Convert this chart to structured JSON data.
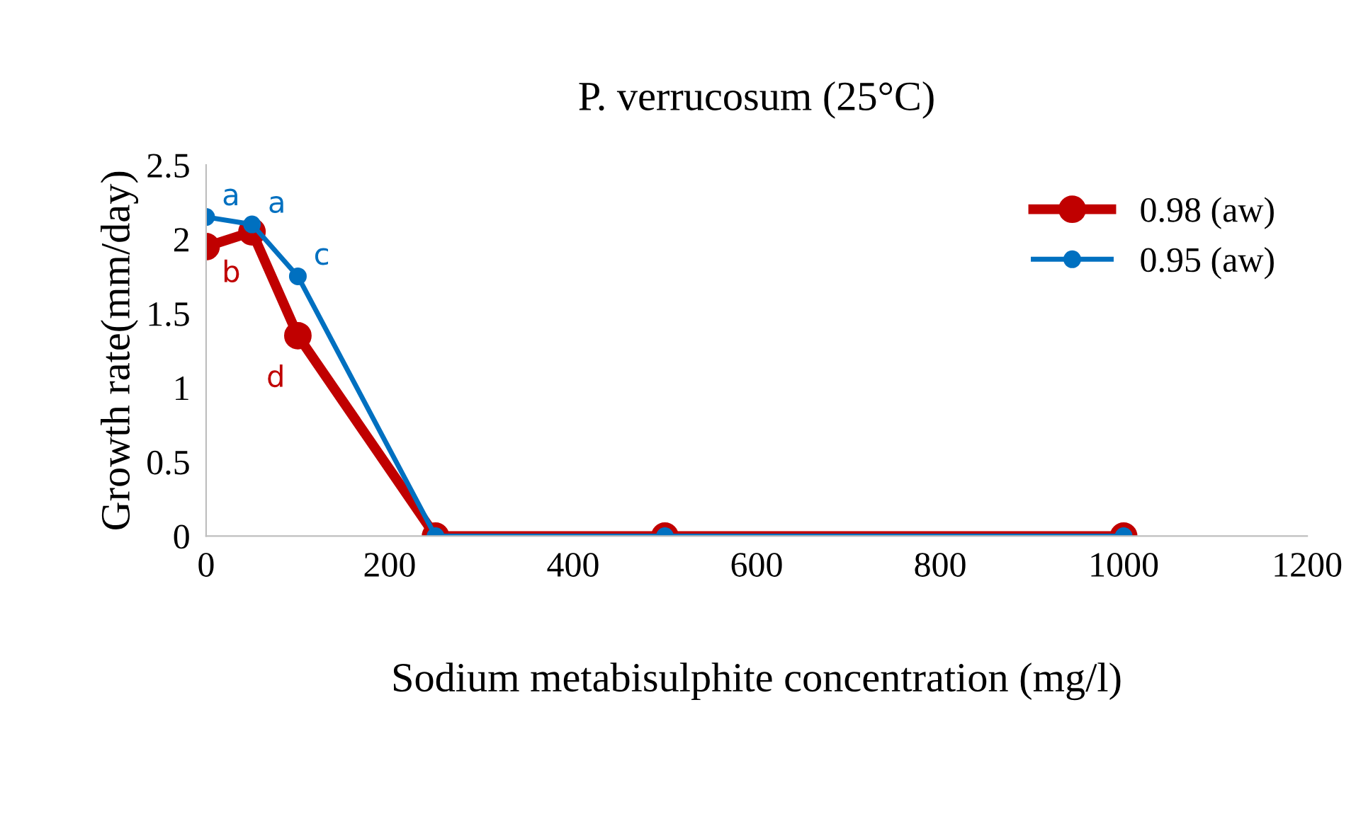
{
  "chart_data": {
    "type": "line",
    "title": "P. verrucosum (25°C)",
    "xlabel": "Sodium metabisulphite concentration (mg/l)",
    "ylabel": "Growth rate(mm/day)",
    "x": [
      0,
      50,
      100,
      250,
      500,
      1000
    ],
    "series": [
      {
        "name": "0.98 (aw)",
        "color": "#c00000",
        "values": [
          1.95,
          2.05,
          1.35,
          0,
          0,
          0
        ],
        "value_labels": [
          "b",
          null,
          "d",
          null,
          null,
          null
        ]
      },
      {
        "name": "0.95 (aw)",
        "color": "#0070c0",
        "values": [
          2.15,
          2.1,
          1.75,
          0,
          0,
          0
        ],
        "value_labels": [
          "a",
          "a",
          "c",
          null,
          null,
          null
        ]
      }
    ],
    "xlim": [
      0,
      1200
    ],
    "xticks": [
      0,
      200,
      400,
      600,
      800,
      1000,
      1200
    ],
    "ylim": [
      0,
      2.5
    ],
    "yticks": [
      0,
      0.5,
      1,
      1.5,
      2,
      2.5
    ],
    "marker": "circle",
    "line_style": "solid",
    "legend": "top right",
    "grid": false
  }
}
